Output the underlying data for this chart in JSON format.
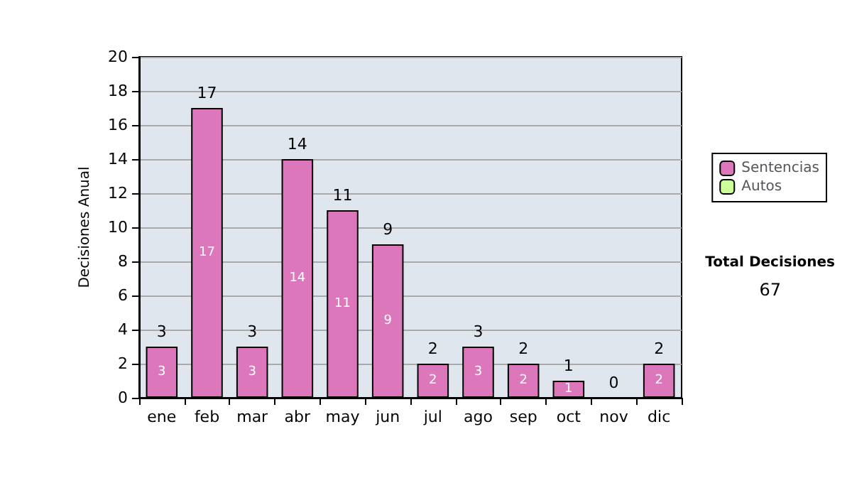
{
  "chart_data": {
    "type": "bar",
    "stacked": true,
    "ylabel": "Decisiones Anual",
    "categories": [
      "ene",
      "feb",
      "mar",
      "abr",
      "may",
      "jun",
      "jul",
      "ago",
      "sep",
      "oct",
      "nov",
      "dic"
    ],
    "series": [
      {
        "name": "Sentencias",
        "color": "#dd77bb",
        "values": [
          3,
          17,
          3,
          14,
          11,
          9,
          2,
          3,
          2,
          1,
          0,
          2
        ],
        "value_labels": [
          "3",
          "17",
          "3",
          "14",
          "11",
          "9",
          "2",
          "3",
          "2",
          "1",
          null,
          "2"
        ]
      },
      {
        "name": "Autos",
        "color": "#ccff99",
        "values": [
          0,
          0,
          0,
          0,
          0,
          0,
          0,
          0,
          0,
          0,
          0,
          0
        ]
      }
    ],
    "totals": [
      "3",
      "17",
      "3",
      "14",
      "11",
      "9",
      "2",
      "3",
      "2",
      "1",
      "0",
      "2"
    ],
    "ylim": [
      0,
      20
    ],
    "yticks": [
      0,
      2,
      4,
      6,
      8,
      10,
      12,
      14,
      16,
      18,
      20
    ],
    "grid": "y",
    "legend": "right",
    "annotations": [
      "Total Decisiones",
      "67"
    ]
  }
}
